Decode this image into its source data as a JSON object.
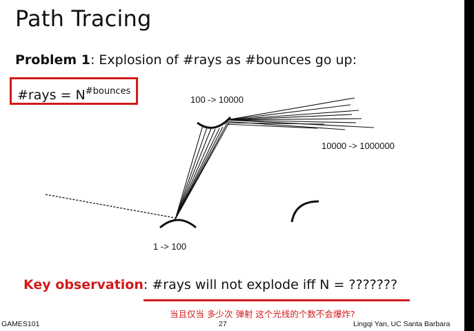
{
  "slide": {
    "title": "Path Tracing",
    "problem_label": "Problem 1",
    "problem_text": ": Explosion of #rays as #bounces go up:",
    "formula_base": "#rays = N",
    "formula_exp": "#bounces",
    "label_bottom": "1 -> 100",
    "label_top": "100 -> 10000",
    "label_right": "10000 -> 1000000",
    "key_label": "Key observation",
    "key_text": ": #rays will not explode iff N = ???????",
    "cn_note": "当且仅当 多少次 弹射 这个光线的个数不会爆炸?",
    "footer_left": "GAMES101",
    "footer_page": "27",
    "footer_right": "Lingqi Yan, UC Santa Barbara"
  },
  "colors": {
    "accent": "#d11a1a",
    "text": "#111111",
    "edge": "#000000"
  }
}
